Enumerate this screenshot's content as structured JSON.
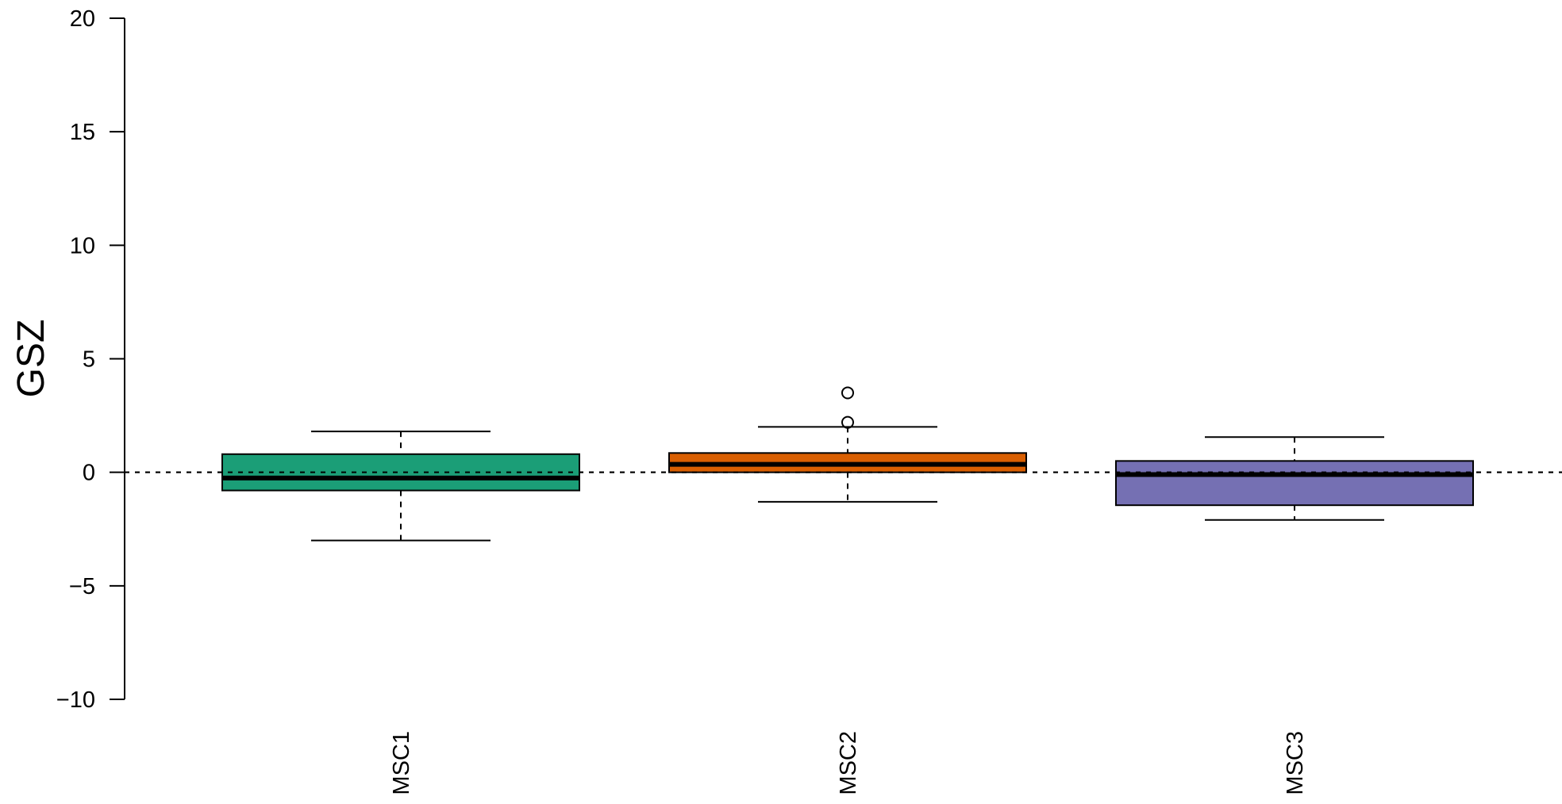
{
  "chart_data": {
    "type": "boxplot",
    "title": "",
    "xlabel": "",
    "ylabel": "GSZ",
    "ylim": [
      -10,
      20
    ],
    "yticks": [
      20,
      15,
      10,
      5,
      0,
      -5,
      -10
    ],
    "ytick_labels": [
      "20",
      "15",
      "10",
      "5",
      "0",
      "−5",
      "−10"
    ],
    "reference_line": {
      "y": 0,
      "style": "dashed"
    },
    "grid": false,
    "categories": [
      "MSC1",
      "MSC2",
      "MSC3"
    ],
    "boxes": [
      {
        "name": "MSC1",
        "color": "#1b9e77",
        "whisker_low": -3.0,
        "q1": -0.8,
        "median": -0.25,
        "q3": 0.8,
        "whisker_high": 1.8,
        "outliers": []
      },
      {
        "name": "MSC2",
        "color": "#d95f02",
        "whisker_low": -1.3,
        "q1": 0.0,
        "median": 0.35,
        "q3": 0.85,
        "whisker_high": 2.0,
        "outliers": [
          2.2,
          3.5
        ]
      },
      {
        "name": "MSC3",
        "color": "#7570b3",
        "whisker_low": -2.1,
        "q1": -1.45,
        "median": -0.1,
        "q3": 0.5,
        "whisker_high": 1.55,
        "outliers": []
      }
    ]
  }
}
